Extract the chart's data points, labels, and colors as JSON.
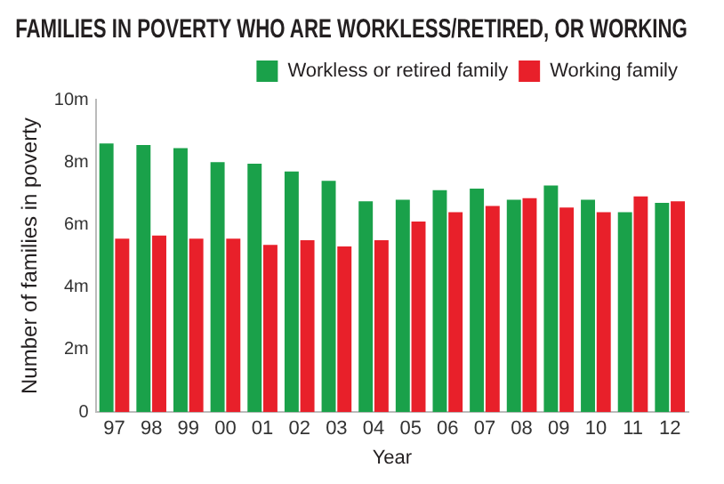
{
  "chart_data": {
    "type": "bar",
    "title": "FAMILIES IN POVERTY WHO ARE WORKLESS/RETIRED, OR WORKING",
    "xlabel": "Year",
    "ylabel": "Number of families in poverty",
    "categories": [
      "97",
      "98",
      "99",
      "00",
      "01",
      "02",
      "03",
      "04",
      "05",
      "06",
      "07",
      "08",
      "09",
      "10",
      "11",
      "12"
    ],
    "series": [
      {
        "name": "Workless or retired family",
        "color": "#1aa14a",
        "values": [
          8.6,
          8.55,
          8.45,
          8.0,
          7.95,
          7.7,
          7.4,
          6.75,
          6.8,
          7.1,
          7.15,
          6.8,
          7.25,
          6.8,
          6.4,
          6.7
        ]
      },
      {
        "name": "Working family",
        "color": "#e8202a",
        "values": [
          5.55,
          5.65,
          5.55,
          5.55,
          5.35,
          5.5,
          5.3,
          5.5,
          6.1,
          6.4,
          6.6,
          6.85,
          6.55,
          6.4,
          6.9,
          6.75
        ]
      }
    ],
    "ylim": [
      0,
      10
    ],
    "yticks": [
      0,
      {
        "value": 2,
        "label": "2m"
      },
      {
        "value": 4,
        "label": "4m"
      },
      {
        "value": 6,
        "label": "6m"
      },
      {
        "value": 8,
        "label": "8m"
      },
      {
        "value": 10,
        "label": "10m"
      }
    ],
    "grid": false,
    "legend": "top"
  }
}
